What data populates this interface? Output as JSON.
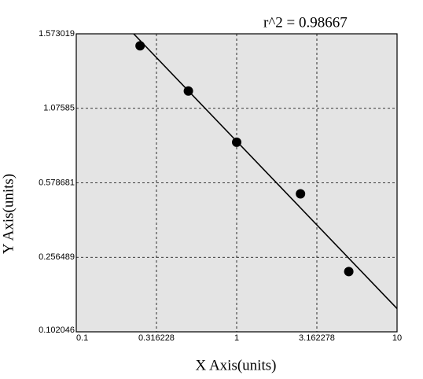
{
  "chart_data": {
    "type": "scatter",
    "annotation": "r^2  = 0.98667",
    "x_label": "X Axis(units)",
    "y_label": "Y Axis(units)",
    "x": [
      0.25,
      0.5,
      1,
      2.5,
      5
    ],
    "values": [
      1.48,
      1.175,
      0.811,
      0.513,
      0.215
    ],
    "color": "#000000",
    "fit": {
      "x": [
        0.228,
        10
      ],
      "values": [
        1.573,
        0.136
      ],
      "color": "#000000"
    },
    "xlim": [
      0.1,
      10
    ],
    "xticks": [
      0.1,
      0.316228,
      1,
      3.162278,
      10
    ],
    "ylim": [
      0.102046,
      1.573019
    ],
    "yticks": [
      0.102046,
      0.256489,
      0.578681,
      1.07585,
      1.573019
    ],
    "xscale": "log",
    "grid": true
  }
}
